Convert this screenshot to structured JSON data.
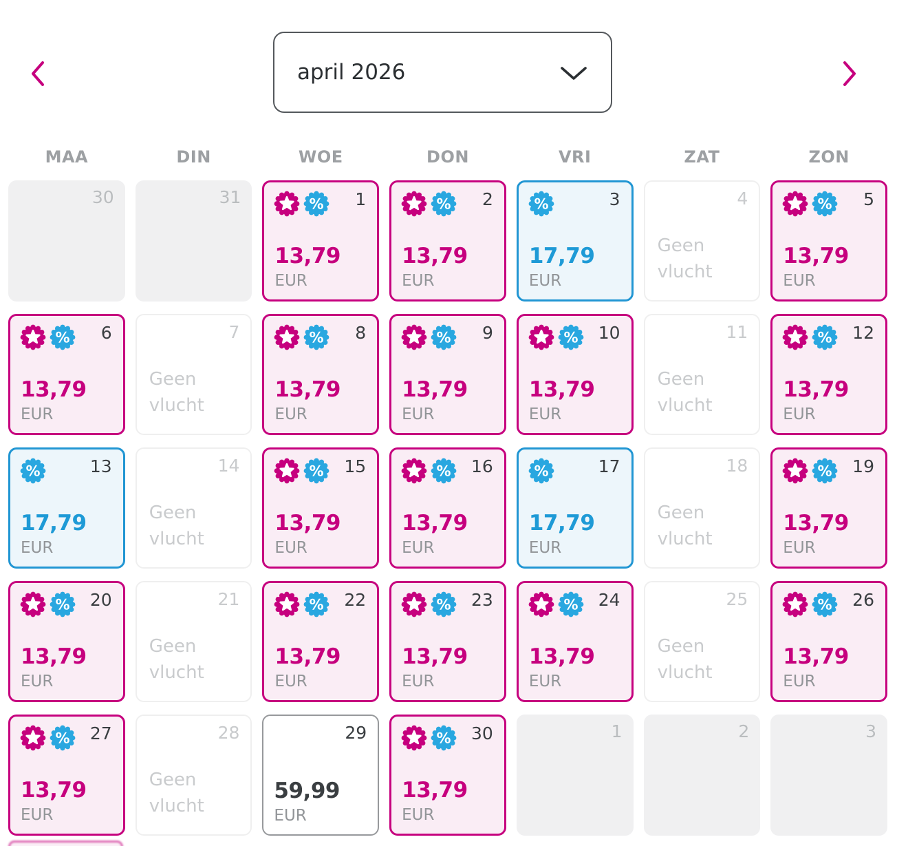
{
  "month_selector": {
    "value": "april 2026"
  },
  "nav": {
    "prev": "previous-month",
    "next": "next-month"
  },
  "weekdays": [
    "MAA",
    "DIN",
    "WOE",
    "DON",
    "VRI",
    "ZAT",
    "ZON"
  ],
  "labels": {
    "no_flight_line1": "Geen",
    "no_flight_line2": "vlucht",
    "currency": "EUR"
  },
  "badge_icons": {
    "star": "star-badge-icon",
    "percent": "percent-badge-icon"
  },
  "colors": {
    "magenta": "#C6007E",
    "pink_bg": "#FAEDF5",
    "blue": "#1E9AD6",
    "blue_border": "#2196D3",
    "blue_badge": "#29A7E0",
    "blue_bg": "#EDF6FB",
    "disabled_bg": "#F0F0F1",
    "none_border": "#EFEFEF",
    "regular_border": "#97999C",
    "text_dark": "#3A3E41",
    "text_gray": "#929598",
    "text_light": "#C9CBCD",
    "weekday_gray": "#9DA0A3"
  },
  "calendar": {
    "cells": [
      {
        "day": "30",
        "type": "disabled"
      },
      {
        "day": "31",
        "type": "disabled"
      },
      {
        "day": "1",
        "type": "deal",
        "price": "13,79",
        "badges": [
          "star",
          "percent"
        ]
      },
      {
        "day": "2",
        "type": "deal",
        "price": "13,79",
        "badges": [
          "star",
          "percent"
        ]
      },
      {
        "day": "3",
        "type": "discount",
        "price": "17,79",
        "badges": [
          "percent"
        ]
      },
      {
        "day": "4",
        "type": "none"
      },
      {
        "day": "5",
        "type": "deal",
        "price": "13,79",
        "badges": [
          "star",
          "percent"
        ]
      },
      {
        "day": "6",
        "type": "deal",
        "price": "13,79",
        "badges": [
          "star",
          "percent"
        ]
      },
      {
        "day": "7",
        "type": "none"
      },
      {
        "day": "8",
        "type": "deal",
        "price": "13,79",
        "badges": [
          "star",
          "percent"
        ]
      },
      {
        "day": "9",
        "type": "deal",
        "price": "13,79",
        "badges": [
          "star",
          "percent"
        ]
      },
      {
        "day": "10",
        "type": "deal",
        "price": "13,79",
        "badges": [
          "star",
          "percent"
        ]
      },
      {
        "day": "11",
        "type": "none"
      },
      {
        "day": "12",
        "type": "deal",
        "price": "13,79",
        "badges": [
          "star",
          "percent"
        ]
      },
      {
        "day": "13",
        "type": "discount",
        "price": "17,79",
        "badges": [
          "percent"
        ]
      },
      {
        "day": "14",
        "type": "none"
      },
      {
        "day": "15",
        "type": "deal",
        "price": "13,79",
        "badges": [
          "star",
          "percent"
        ]
      },
      {
        "day": "16",
        "type": "deal",
        "price": "13,79",
        "badges": [
          "star",
          "percent"
        ]
      },
      {
        "day": "17",
        "type": "discount",
        "price": "17,79",
        "badges": [
          "percent"
        ]
      },
      {
        "day": "18",
        "type": "none"
      },
      {
        "day": "19",
        "type": "deal",
        "price": "13,79",
        "badges": [
          "star",
          "percent"
        ]
      },
      {
        "day": "20",
        "type": "deal",
        "price": "13,79",
        "badges": [
          "star",
          "percent"
        ]
      },
      {
        "day": "21",
        "type": "none"
      },
      {
        "day": "22",
        "type": "deal",
        "price": "13,79",
        "badges": [
          "star",
          "percent"
        ]
      },
      {
        "day": "23",
        "type": "deal",
        "price": "13,79",
        "badges": [
          "star",
          "percent"
        ]
      },
      {
        "day": "24",
        "type": "deal",
        "price": "13,79",
        "badges": [
          "star",
          "percent"
        ]
      },
      {
        "day": "25",
        "type": "none"
      },
      {
        "day": "26",
        "type": "deal",
        "price": "13,79",
        "badges": [
          "star",
          "percent"
        ]
      },
      {
        "day": "27",
        "type": "deal",
        "price": "13,79",
        "badges": [
          "star",
          "percent"
        ]
      },
      {
        "day": "28",
        "type": "none"
      },
      {
        "day": "29",
        "type": "regular",
        "price": "59,99"
      },
      {
        "day": "30",
        "type": "deal",
        "price": "13,79",
        "badges": [
          "star",
          "percent"
        ]
      },
      {
        "day": "1",
        "type": "disabled"
      },
      {
        "day": "2",
        "type": "disabled"
      },
      {
        "day": "3",
        "type": "disabled"
      }
    ]
  }
}
